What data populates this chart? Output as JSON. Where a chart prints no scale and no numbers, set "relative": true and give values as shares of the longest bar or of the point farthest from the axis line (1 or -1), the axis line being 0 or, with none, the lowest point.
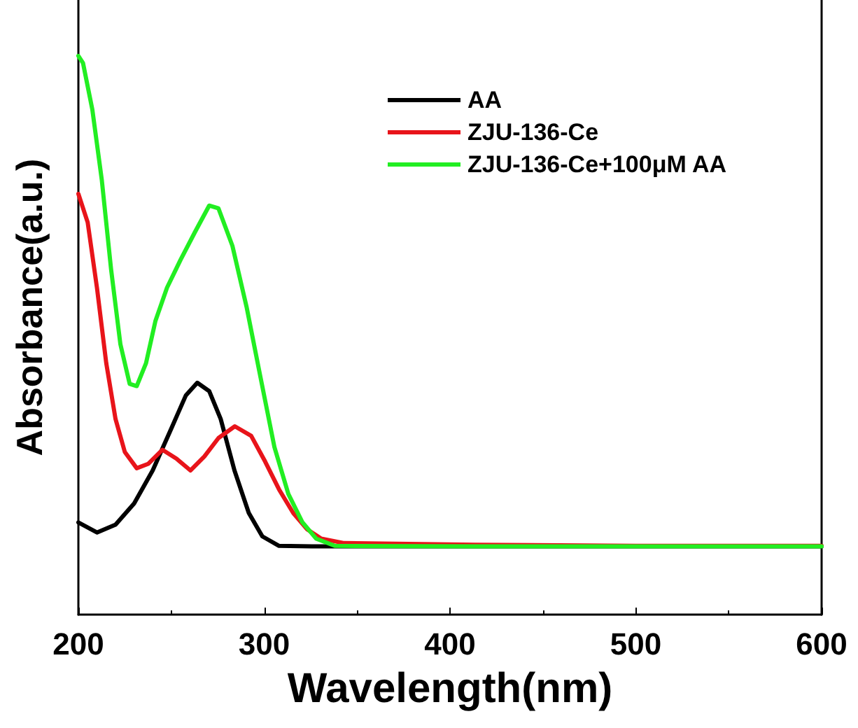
{
  "chart_data": {
    "type": "line",
    "xlabel": "Wavelength(nm)",
    "ylabel": "Absorbance(a.u.)",
    "relative": true,
    "xlim": [
      200,
      600
    ],
    "xticks": [
      200,
      300,
      400,
      500,
      600
    ],
    "grid": false,
    "legend": "top right",
    "marker": "none",
    "line_style": "solid",
    "series": [
      {
        "name": "AA",
        "color": "#000000",
        "x": [
          200,
          210,
          220,
          230,
          240,
          250,
          257.8,
          264,
          270.4,
          276.6,
          284,
          291.7,
          299,
          308,
          325.6,
          600
        ],
        "values": [
          0.165,
          0.147,
          0.161,
          0.199,
          0.258,
          0.333,
          0.392,
          0.415,
          0.4,
          0.35,
          0.258,
          0.182,
          0.14,
          0.123,
          0.122,
          0.122
        ]
      },
      {
        "name": "ZJU-136-Ce",
        "color": "#e8141a",
        "x": [
          200,
          205,
          210,
          215,
          220,
          225,
          231.4,
          237.7,
          245.2,
          252.8,
          260.3,
          267.8,
          275.4,
          284.2,
          293,
          300.5,
          308,
          315.6,
          323,
          330.7,
          343,
          413.6,
          500,
          600
        ],
        "values": [
          0.753,
          0.702,
          0.585,
          0.45,
          0.35,
          0.291,
          0.262,
          0.27,
          0.295,
          0.279,
          0.258,
          0.283,
          0.316,
          0.337,
          0.32,
          0.274,
          0.224,
          0.182,
          0.153,
          0.136,
          0.128,
          0.125,
          0.123,
          0.123
        ]
      },
      {
        "name": "ZJU-136-Ce+100μM AA",
        "color": "#22ee22",
        "x": [
          200,
          202.5,
          207.5,
          212.6,
          217.6,
          222.6,
          227.6,
          231.4,
          236.4,
          241.5,
          247.7,
          255,
          262.8,
          270.4,
          275.4,
          282.9,
          290.5,
          298,
          305.5,
          313,
          320.6,
          328,
          338,
          413.6,
          500,
          600
        ],
        "values": [
          1.0,
          0.987,
          0.904,
          0.778,
          0.618,
          0.484,
          0.413,
          0.409,
          0.45,
          0.526,
          0.585,
          0.635,
          0.685,
          0.732,
          0.727,
          0.66,
          0.551,
          0.425,
          0.3,
          0.216,
          0.165,
          0.136,
          0.123,
          0.122,
          0.122,
          0.122
        ]
      }
    ]
  }
}
